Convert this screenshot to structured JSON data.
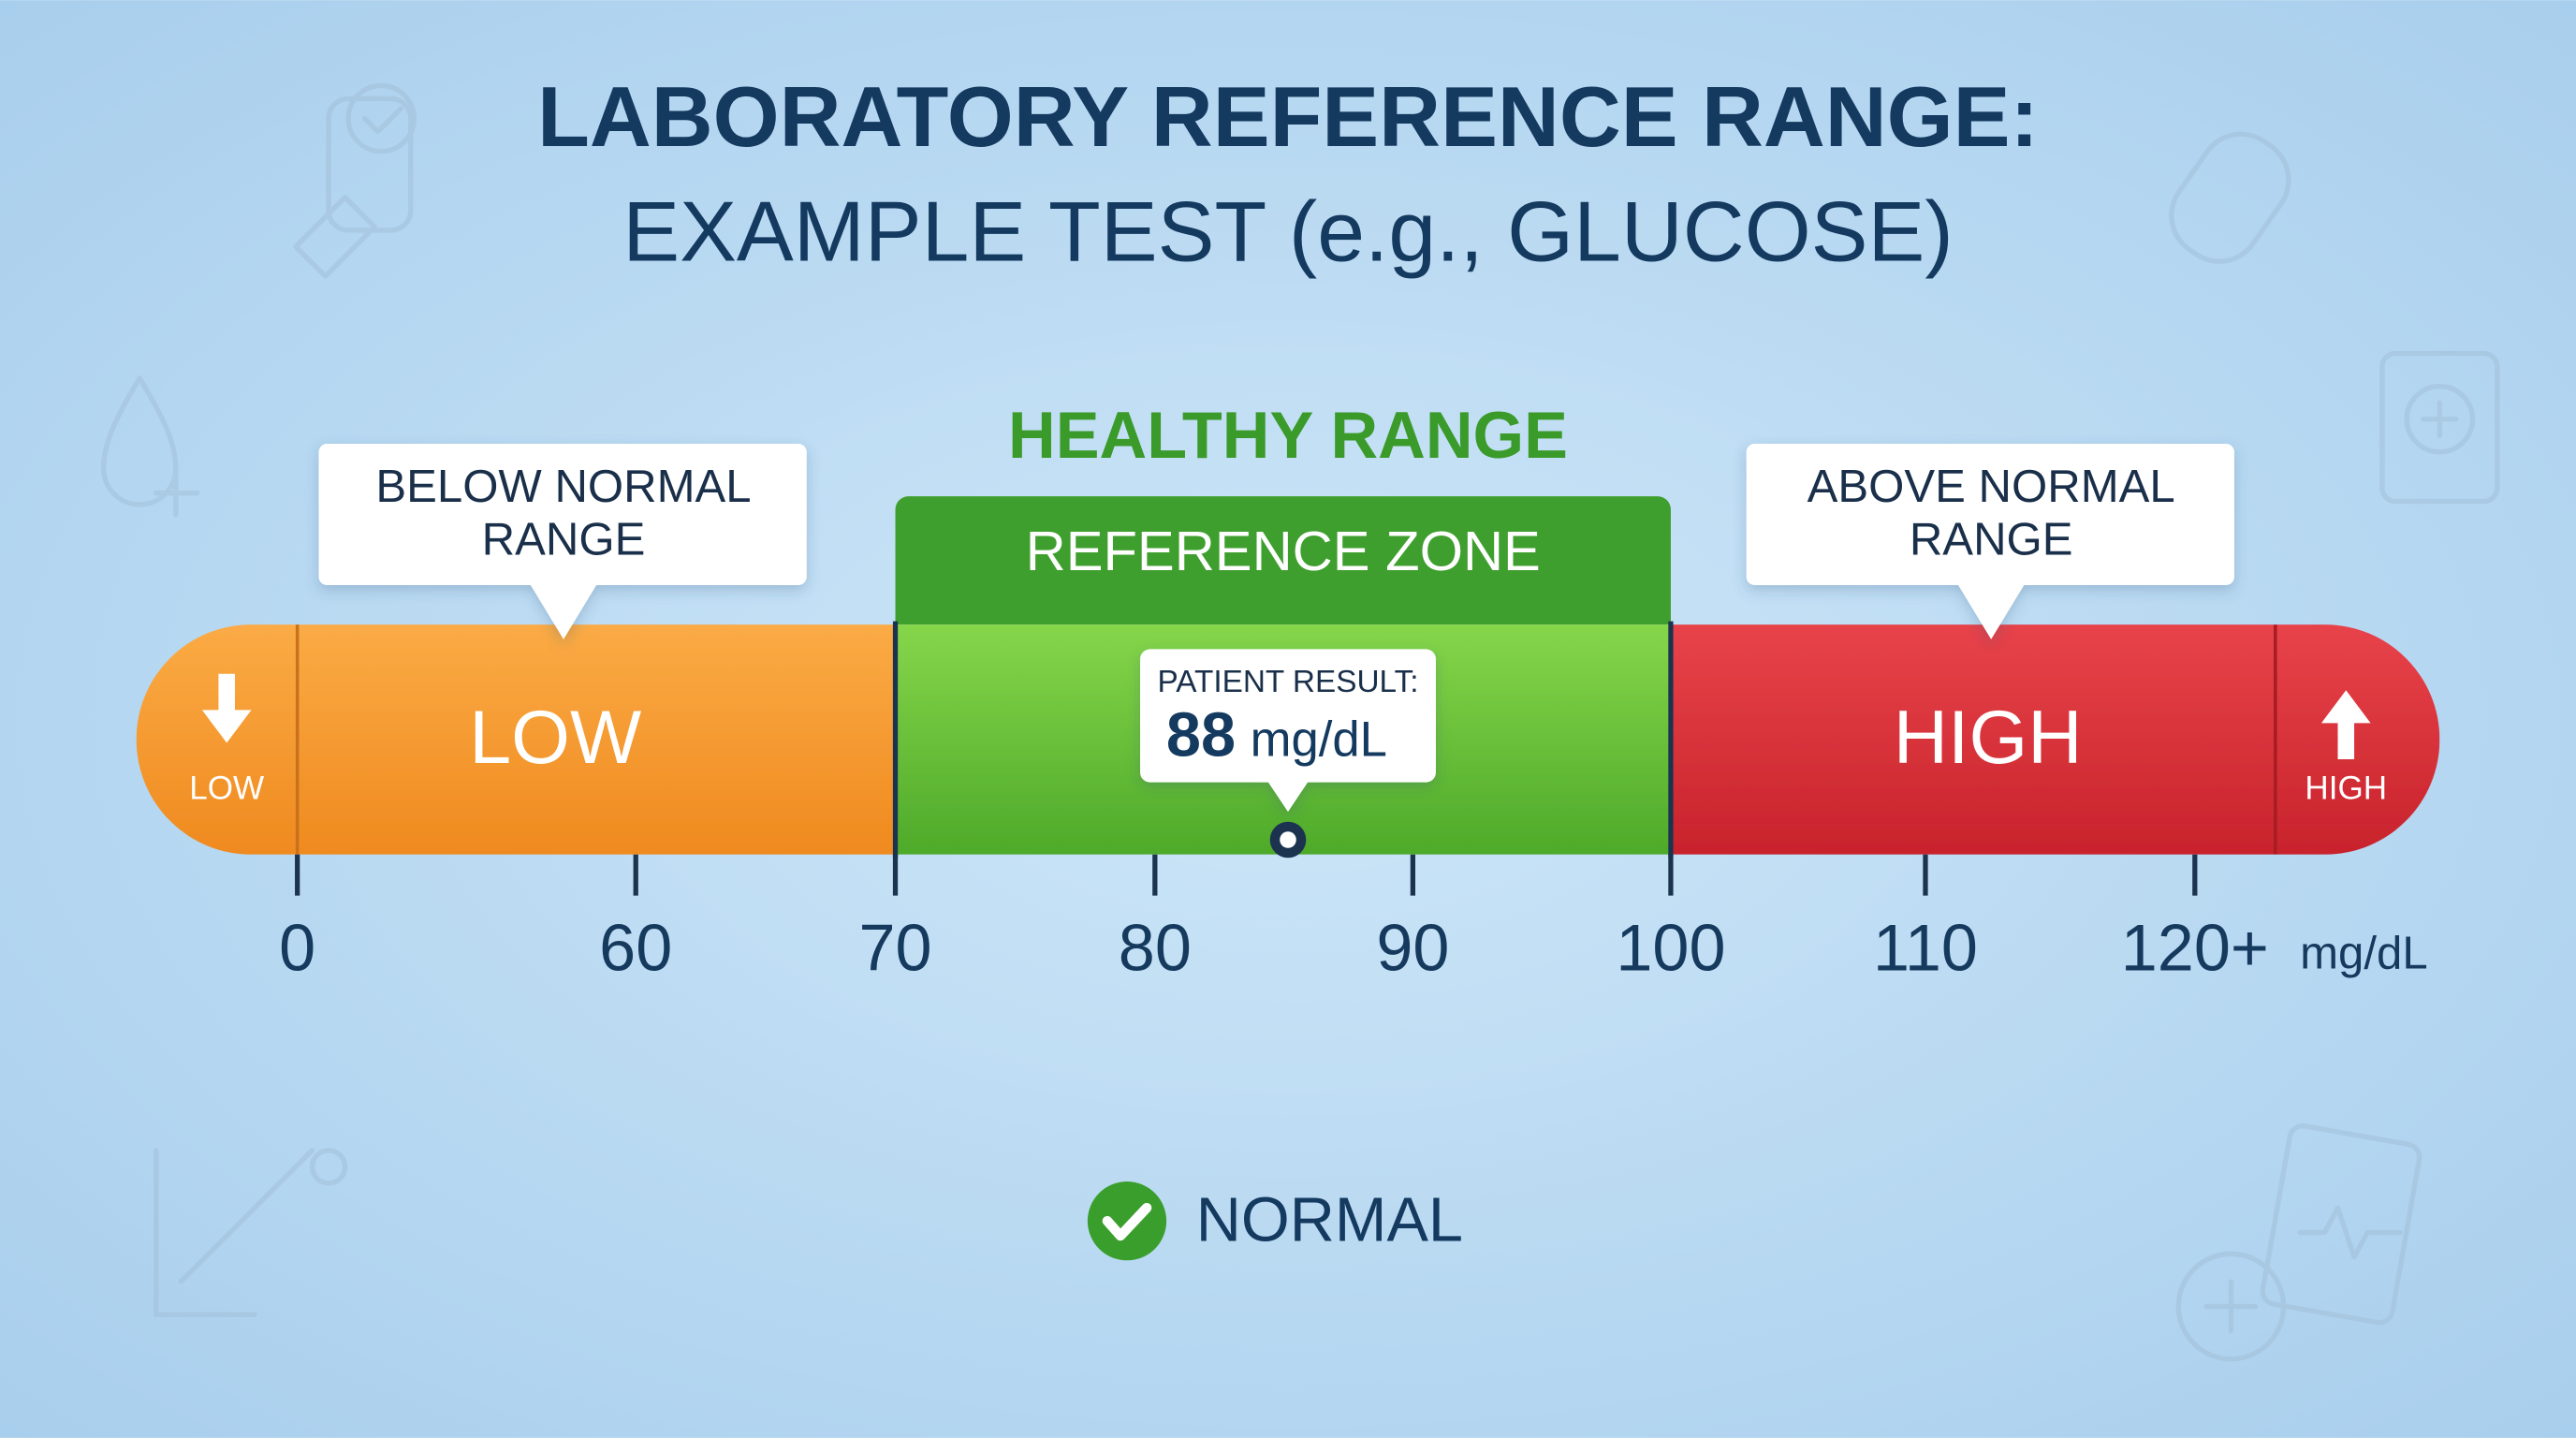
{
  "header": {
    "title_line1": "LABORATORY REFERENCE RANGE:",
    "title_line2": "EXAMPLE TEST (e.g., GLUCOSE)"
  },
  "healthy_label": "HEALTHY RANGE",
  "reference_zone": "REFERENCE ZONE",
  "callouts": {
    "below": [
      "BELOW NORMAL",
      "RANGE"
    ],
    "above": [
      "ABOVE NORMAL",
      "RANGE"
    ]
  },
  "zones": {
    "low": "LOW",
    "high": "HIGH"
  },
  "end_caps": {
    "low": "LOW",
    "high": "HIGH"
  },
  "patient": {
    "label": "PATIENT RESULT:",
    "value": "88",
    "unit": "mg/dL"
  },
  "scale": {
    "ticks": [
      "0",
      "60",
      "70",
      "80",
      "90",
      "100",
      "110",
      "120+"
    ],
    "unit": "mg/dL"
  },
  "status": "NORMAL"
}
